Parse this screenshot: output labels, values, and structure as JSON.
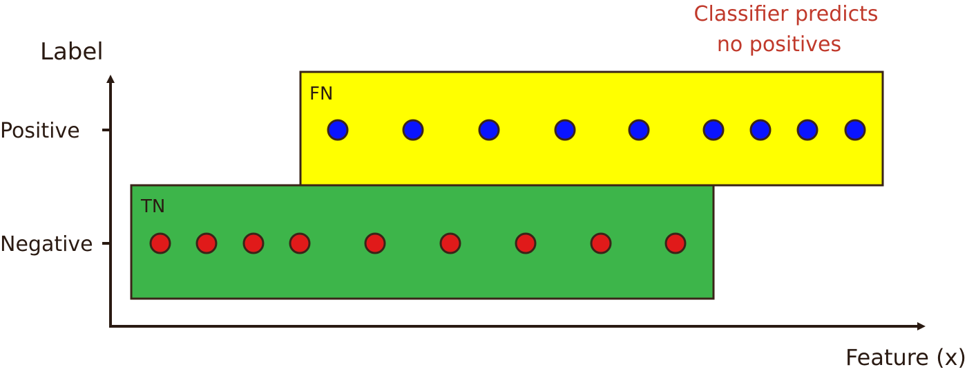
{
  "axes": {
    "y_title": "Label",
    "x_title": "Feature (x)",
    "y_ticks": [
      "Positive",
      "Negative"
    ]
  },
  "annotation": {
    "lines": [
      "Classifier predicts",
      "no positives"
    ],
    "color": "#c0392b"
  },
  "regions": [
    {
      "id": "fn",
      "label": "FN",
      "fill": "#ffff00"
    },
    {
      "id": "tn",
      "label": "TN",
      "fill": "#3db54a"
    }
  ],
  "points": {
    "positive": {
      "color": "#0a14ff",
      "count": 9
    },
    "negative": {
      "color": "#e01a1a",
      "count": 9
    }
  },
  "colors": {
    "ink": "#2a1a12",
    "outline": "#3a2418"
  }
}
